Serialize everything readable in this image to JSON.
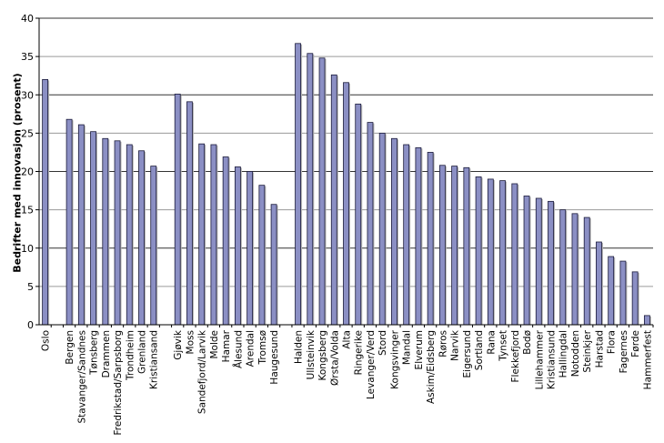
{
  "chart_data": {
    "type": "bar",
    "title": "",
    "xlabel": "",
    "ylabel": "Bedrifter med innovasjon (prosent)",
    "ylim": [
      0,
      40
    ],
    "yticks": [
      0,
      5,
      10,
      15,
      20,
      25,
      30,
      35,
      40
    ],
    "grid": true,
    "legend": null,
    "bar_color": "#8b8fc4",
    "bar_edge_color": "#1a1a3a",
    "groups": [
      {
        "categories": [
          "Oslo"
        ],
        "values": [
          32.0
        ]
      },
      {
        "categories": [
          "Bergen",
          "Stavanger/Sandnes",
          "Tønsberg",
          "Drammen",
          "Fredrikstad/Sarpsborg",
          "Trondheim",
          "Grenland",
          "Kristiansand"
        ],
        "values": [
          26.8,
          26.1,
          25.2,
          24.3,
          24.0,
          23.5,
          22.7,
          20.7
        ]
      },
      {
        "categories": [
          "Gjøvik",
          "Moss",
          "Sandefjord/Larvik",
          "Molde",
          "Hamar",
          "Ålesund",
          "Arendal",
          "Tromsø",
          "Haugesund"
        ],
        "values": [
          30.1,
          29.1,
          23.6,
          23.5,
          21.9,
          20.6,
          20.0,
          18.2,
          15.7
        ]
      },
      {
        "categories": [
          "Halden",
          "Ullsteinvik",
          "Kongsberg",
          "Ørsta/Volda",
          "Alta",
          "Ringerike",
          "Levanger/Verd",
          "Stord",
          "Kongsvinger",
          "Mandal",
          "Elverum",
          "Askim/Eidsberg",
          "Røros",
          "Narvik",
          "Eigersund",
          "Sortland",
          "Rana",
          "Tynset",
          "Flekkefjord",
          "Bodø",
          "Lillehammer",
          "Kristiansund",
          "Hallingdal",
          "Notodden",
          "Steinkjer",
          "Harstad",
          "Flora",
          "Fagernes",
          "Førde",
          "Hammerfest"
        ],
        "values": [
          36.7,
          35.4,
          34.8,
          32.6,
          31.6,
          28.8,
          26.4,
          25.0,
          24.3,
          23.5,
          23.1,
          22.5,
          20.8,
          20.7,
          20.5,
          19.3,
          19.0,
          18.8,
          18.4,
          16.8,
          16.5,
          16.1,
          15.0,
          14.5,
          14.0,
          10.8,
          8.9,
          8.3,
          6.9,
          1.2
        ]
      }
    ],
    "slots": [
      "Oslo",
      "",
      "Bergen",
      "Stavanger/Sandnes",
      "Tønsberg",
      "Drammen",
      "Fredrikstad/Sarpsborg",
      "Trondheim",
      "Grenland",
      "Kristiansand",
      "",
      "Gjøvik",
      "Moss",
      "Sandefjord/Larvik",
      "Molde",
      "Hamar",
      "Ålesund",
      "Arendal",
      "Tromsø",
      "Haugesund",
      "",
      "Halden",
      "Ullsteinvik",
      "Kongsberg",
      "Ørsta/Volda",
      "Alta",
      "Ringerike",
      "Levanger/Verd",
      "Stord",
      "Kongsvinger",
      "Mandal",
      "Elverum",
      "Askim/Eidsberg",
      "Røros",
      "Narvik",
      "Eigersund",
      "Sortland",
      "Rana",
      "Tynset",
      "Flekkefjord",
      "Bodø",
      "Lillehammer",
      "Kristiansund",
      "Hallingdal",
      "Notodden",
      "Steinkjer",
      "Harstad",
      "Flora",
      "Fagernes",
      "Førde",
      "Hammerfest"
    ],
    "slot_values": [
      32.0,
      null,
      26.8,
      26.1,
      25.2,
      24.3,
      24.0,
      23.5,
      22.7,
      20.7,
      null,
      30.1,
      29.1,
      23.6,
      23.5,
      21.9,
      20.6,
      20.0,
      18.2,
      15.7,
      null,
      36.7,
      35.4,
      34.8,
      32.6,
      31.6,
      28.8,
      26.4,
      25.0,
      24.3,
      23.5,
      23.1,
      22.5,
      20.8,
      20.7,
      20.5,
      19.3,
      19.0,
      18.8,
      18.4,
      16.8,
      16.5,
      16.1,
      15.0,
      14.5,
      14.0,
      10.8,
      8.9,
      8.3,
      6.9,
      1.2
    ]
  }
}
